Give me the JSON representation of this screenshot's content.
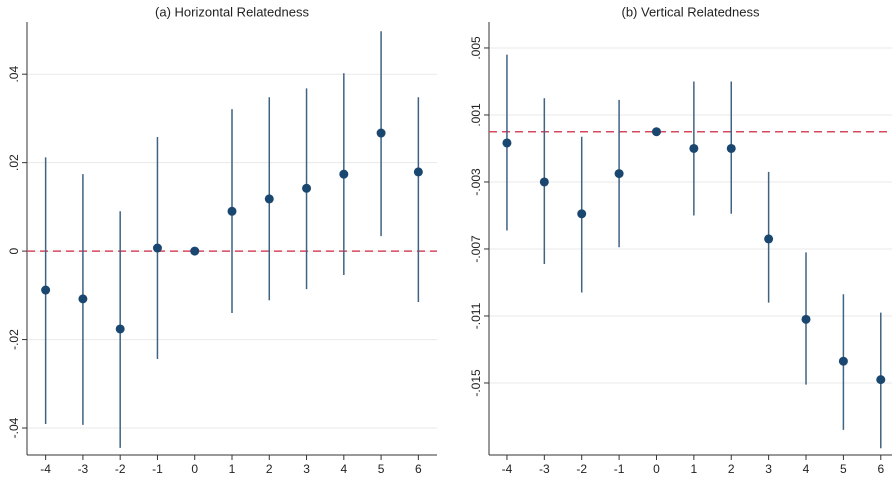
{
  "chart_data": [
    {
      "type": "errorbar",
      "title": "(a) Horizontal Relatedness",
      "x": [
        -4,
        -3,
        -2,
        -1,
        0,
        1,
        2,
        3,
        4,
        5,
        6
      ],
      "series": [
        {
          "color": "#1a476f",
          "values": [
            -0.0088,
            -0.0108,
            -0.0176,
            0.0007,
            0,
            0.009,
            0.0118,
            0.0142,
            0.0174,
            0.0267,
            0.0179
          ],
          "lower": [
            -0.0391,
            -0.0393,
            -0.0445,
            -0.0244,
            null,
            -0.014,
            -0.0111,
            -0.0086,
            -0.0054,
            0.0034,
            -0.0115
          ],
          "upper": [
            0.0212,
            0.0174,
            0.009,
            0.0258,
            null,
            0.0321,
            0.0348,
            0.0368,
            0.0402,
            0.0497,
            0.0348
          ]
        }
      ],
      "reference_line": {
        "value": 0,
        "color": "#d6485e"
      },
      "xlim": [
        -4.5,
        6.5
      ],
      "xticks": [
        -4,
        -3,
        -2,
        -1,
        0,
        1,
        2,
        3,
        4,
        5,
        6
      ],
      "ylim": [
        -0.0461,
        0.0518
      ],
      "yticks": [
        {
          "value": -0.04,
          "label": "-.04"
        },
        {
          "value": -0.02,
          "label": "-.02"
        },
        0,
        {
          "value": 0.02,
          "label": ".02"
        },
        {
          "value": 0.04,
          "label": ".04"
        }
      ],
      "grid": true
    },
    {
      "type": "errorbar",
      "title": "(b) Vertical Relatedness",
      "x": [
        -4,
        -3,
        -2,
        -1,
        0,
        1,
        2,
        3,
        4,
        5,
        6
      ],
      "series": [
        {
          "color": "#1a476f",
          "values": [
            -0.00067,
            -0.003,
            -0.0049,
            -0.0025,
            0,
            -0.001,
            -0.001,
            -0.0064,
            -0.0112,
            -0.0137,
            -0.0148
          ],
          "lower": [
            -0.0059,
            -0.0079,
            -0.0096,
            -0.0069,
            null,
            -0.005,
            -0.0049,
            -0.0102,
            -0.0151,
            -0.0178,
            -0.0189
          ],
          "upper": [
            0.0046,
            0.002,
            -0.0003,
            0.0019,
            null,
            0.003,
            0.003,
            -0.0024,
            -0.0072,
            -0.0097,
            -0.0108
          ]
        }
      ],
      "reference_line": {
        "value": 0,
        "color": "#d6485e"
      },
      "xlim": [
        -4.48,
        6.3
      ],
      "xticks": [
        -4,
        -3,
        -2,
        -1,
        0,
        1,
        2,
        3,
        4,
        5,
        6
      ],
      "ylim": [
        -0.0193,
        0.00655
      ],
      "yticks": [
        {
          "value": -0.015,
          "label": "-.015"
        },
        {
          "value": -0.011,
          "label": "-.011"
        },
        {
          "value": -0.007,
          "label": "-.007"
        },
        {
          "value": -0.003,
          "label": "-.003"
        },
        {
          "value": 0.001,
          "label": ".001"
        },
        {
          "value": 0.005,
          "label": ".005"
        }
      ],
      "grid": true
    }
  ]
}
